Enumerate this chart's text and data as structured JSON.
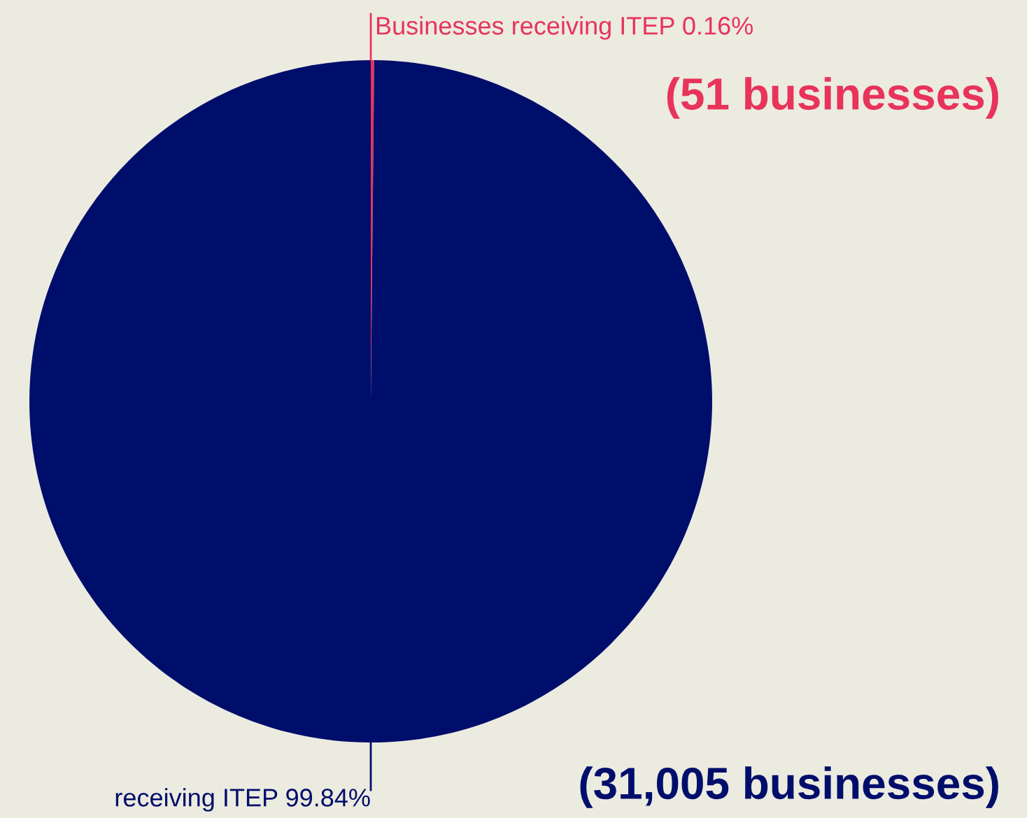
{
  "chart_data": {
    "type": "pie",
    "categories": [
      "Businesses receiving ITEP",
      "receiving ITEP"
    ],
    "values": [
      0.16,
      99.84
    ],
    "value_labels": [
      "0.16%",
      "99.84%"
    ],
    "colors": [
      "#e8335a",
      "#000e6b"
    ],
    "annotations": [
      "(51 businesses)",
      "(31,005 businesses)"
    ]
  }
}
